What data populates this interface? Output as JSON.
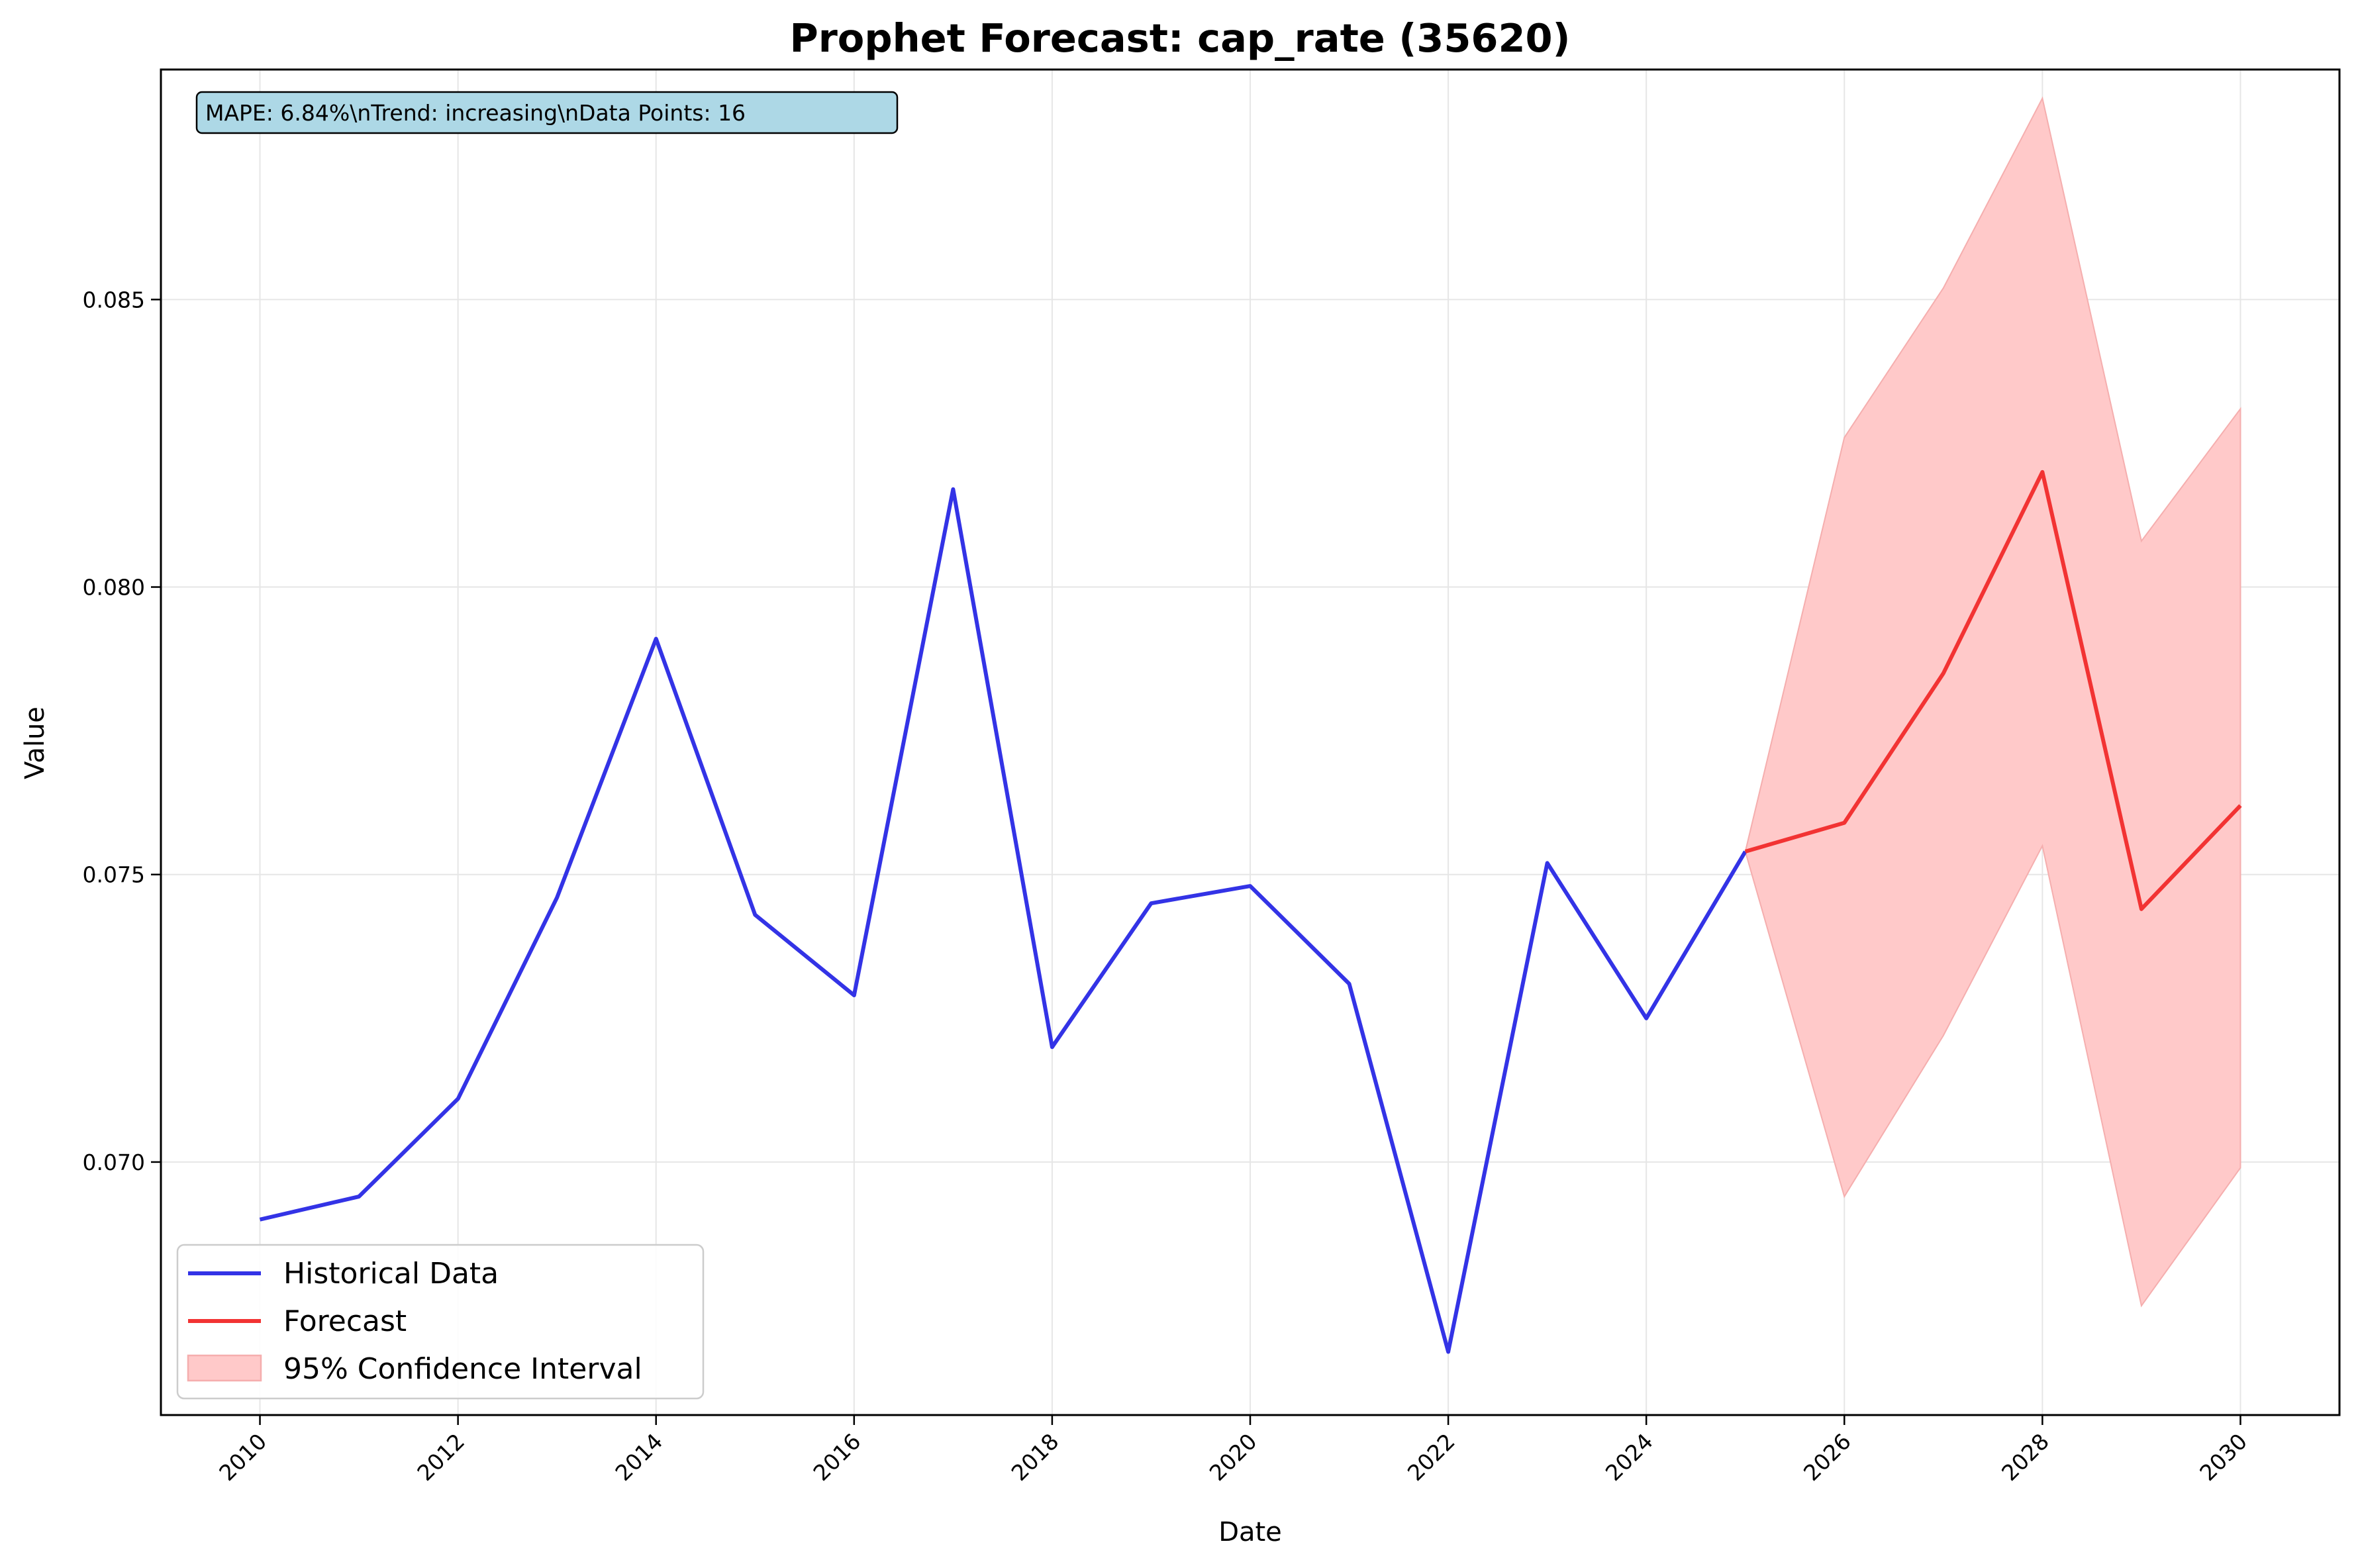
{
  "chart_data": {
    "type": "line",
    "title": "Prophet Forecast: cap_rate (35620)",
    "xlabel": "Date",
    "ylabel": "Value",
    "xlim": [
      2009,
      2031
    ],
    "ylim": [
      0.0656,
      0.089
    ],
    "x_ticks": [
      2010,
      2012,
      2014,
      2016,
      2018,
      2020,
      2022,
      2024,
      2026,
      2028,
      2030
    ],
    "y_ticks": [
      0.07,
      0.075,
      0.08,
      0.085
    ],
    "y_tick_labels": [
      "0.070",
      "0.075",
      "0.080",
      "0.085"
    ],
    "grid": true,
    "legend_position": "lower-left",
    "annotation": "MAPE: 6.84%\\nTrend: increasing\\nData Points: 16",
    "series": [
      {
        "name": "Historical Data",
        "color": "#3333e6",
        "x": [
          2010,
          2011,
          2012,
          2013,
          2014,
          2015,
          2016,
          2017,
          2018,
          2019,
          2020,
          2021,
          2022,
          2023,
          2024,
          2025
        ],
        "values": [
          0.069,
          0.0694,
          0.0711,
          0.0746,
          0.0791,
          0.0743,
          0.0729,
          0.0817,
          0.072,
          0.0745,
          0.0748,
          0.0731,
          0.0667,
          0.0752,
          0.0725,
          0.0754
        ]
      },
      {
        "name": "Forecast",
        "color": "#f23333",
        "x": [
          2025,
          2026,
          2027,
          2028,
          2029,
          2030
        ],
        "values": [
          0.0754,
          0.0759,
          0.0785,
          0.082,
          0.0744,
          0.0762
        ]
      }
    ],
    "confidence_interval": {
      "name": "95% Confidence Interval",
      "color": "#ffc9c9",
      "edge_color": "#f5aeae",
      "x": [
        2025,
        2026,
        2027,
        2028,
        2029,
        2030
      ],
      "lower": [
        0.0754,
        0.0694,
        0.0722,
        0.0755,
        0.0675,
        0.0699
      ],
      "upper": [
        0.0754,
        0.0826,
        0.0852,
        0.0885,
        0.0808,
        0.0831
      ]
    }
  }
}
